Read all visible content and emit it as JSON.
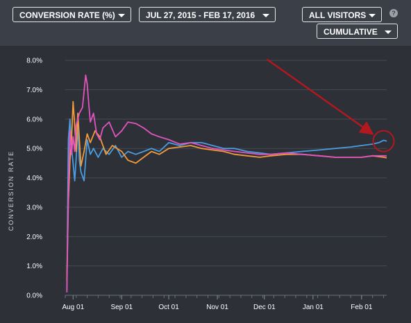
{
  "toolbar": {
    "metric_label": "CONVERSION RATE (%)",
    "date_range_label": "JUL 27, 2015 - FEB 17, 2016",
    "segment_label": "ALL VISITORS",
    "mode_label": "CUMULATIVE",
    "help_symbol": "?"
  },
  "colors": {
    "background": "#2d3037",
    "toolbar": "#3b3f47",
    "blue": "#4a9de0",
    "orange": "#f39a3a",
    "magenta": "#e354c0",
    "annotation": "#b3181f"
  },
  "chart_data": {
    "type": "line",
    "ylabel": "CONVERSION RATE",
    "xlabel": "",
    "ylim": [
      0,
      8.5
    ],
    "yticks": [
      0,
      1,
      2,
      3,
      4,
      5,
      6,
      7,
      8
    ],
    "ytick_labels": [
      "0.0%",
      "1.0%",
      "2.0%",
      "3.0%",
      "4.0%",
      "5.0%",
      "6.0%",
      "7.0%",
      "8.0%"
    ],
    "xlim": [
      "2015-07-27",
      "2016-02-17"
    ],
    "xticks": [
      "2015-08-01",
      "2015-09-01",
      "2015-10-01",
      "2015-11-01",
      "2015-12-01",
      "2016-01-01",
      "2016-02-01"
    ],
    "xtick_labels": [
      "Aug 01",
      "Sep 01",
      "Oct 01",
      "Nov 01",
      "Dec 01",
      "Jan 01",
      "Feb 01"
    ],
    "grid": true,
    "annotation": {
      "type": "arrow-and-circle",
      "target": [
        "2016-02-15",
        5.25
      ]
    },
    "series": [
      {
        "color": "#4a9de0",
        "x": [
          "2015-07-28",
          "2015-07-29",
          "2015-07-30",
          "2015-07-31",
          "2015-08-01",
          "2015-08-02",
          "2015-08-03",
          "2015-08-04",
          "2015-08-05",
          "2015-08-06",
          "2015-08-08",
          "2015-08-10",
          "2015-08-12",
          "2015-08-14",
          "2015-08-17",
          "2015-08-20",
          "2015-08-24",
          "2015-08-28",
          "2015-09-01",
          "2015-09-05",
          "2015-09-10",
          "2015-09-15",
          "2015-09-20",
          "2015-09-25",
          "2015-10-01",
          "2015-10-08",
          "2015-10-15",
          "2015-10-22",
          "2015-10-29",
          "2015-11-05",
          "2015-11-12",
          "2015-11-20",
          "2015-11-28",
          "2015-12-05",
          "2015-12-15",
          "2015-12-25",
          "2016-01-05",
          "2016-01-15",
          "2016-01-25",
          "2016-02-01",
          "2016-02-08",
          "2016-02-12",
          "2016-02-15",
          "2016-02-17"
        ],
        "y": [
          0.2,
          5.3,
          6.0,
          5.0,
          4.5,
          3.9,
          4.7,
          5.8,
          4.6,
          4.2,
          3.9,
          5.3,
          4.8,
          5.0,
          4.7,
          5.0,
          4.8,
          5.1,
          4.7,
          4.9,
          4.8,
          4.9,
          5.0,
          4.9,
          5.2,
          5.1,
          5.2,
          5.2,
          5.1,
          5.0,
          5.0,
          4.9,
          4.85,
          4.8,
          4.85,
          4.9,
          4.95,
          5.0,
          5.05,
          5.1,
          5.15,
          5.2,
          5.28,
          5.25
        ]
      },
      {
        "color": "#f39a3a",
        "x": [
          "2015-07-28",
          "2015-07-29",
          "2015-07-30",
          "2015-07-31",
          "2015-08-01",
          "2015-08-02",
          "2015-08-03",
          "2015-08-04",
          "2015-08-06",
          "2015-08-08",
          "2015-08-10",
          "2015-08-12",
          "2015-08-15",
          "2015-08-18",
          "2015-08-22",
          "2015-08-26",
          "2015-09-01",
          "2015-09-05",
          "2015-09-10",
          "2015-09-15",
          "2015-09-20",
          "2015-09-25",
          "2015-10-01",
          "2015-10-08",
          "2015-10-15",
          "2015-10-22",
          "2015-10-29",
          "2015-11-05",
          "2015-11-12",
          "2015-11-20",
          "2015-11-28",
          "2015-12-05",
          "2015-12-15",
          "2015-12-25",
          "2016-01-05",
          "2016-01-15",
          "2016-01-25",
          "2016-02-01",
          "2016-02-08",
          "2016-02-15",
          "2016-02-17"
        ],
        "y": [
          0.5,
          3.2,
          4.6,
          5.3,
          6.6,
          5.8,
          4.9,
          6.2,
          4.4,
          4.9,
          5.5,
          5.2,
          5.6,
          5.4,
          4.8,
          5.1,
          4.9,
          4.6,
          4.5,
          4.7,
          4.9,
          4.8,
          5.0,
          5.05,
          5.1,
          5.0,
          4.95,
          4.9,
          4.8,
          4.75,
          4.7,
          4.75,
          4.8,
          4.8,
          4.75,
          4.7,
          4.7,
          4.7,
          4.75,
          4.7,
          4.68
        ]
      },
      {
        "color": "#e354c0",
        "x": [
          "2015-07-28",
          "2015-07-29",
          "2015-07-30",
          "2015-07-31",
          "2015-08-01",
          "2015-08-02",
          "2015-08-03",
          "2015-08-05",
          "2015-08-07",
          "2015-08-09",
          "2015-08-10",
          "2015-08-11",
          "2015-08-12",
          "2015-08-14",
          "2015-08-16",
          "2015-08-18",
          "2015-08-20",
          "2015-08-24",
          "2015-08-28",
          "2015-09-01",
          "2015-09-05",
          "2015-09-10",
          "2015-09-15",
          "2015-09-20",
          "2015-09-25",
          "2015-10-01",
          "2015-10-08",
          "2015-10-15",
          "2015-10-22",
          "2015-10-29",
          "2015-11-05",
          "2015-11-12",
          "2015-11-20",
          "2015-11-28",
          "2015-12-05",
          "2015-12-15",
          "2015-12-25",
          "2016-01-05",
          "2016-01-15",
          "2016-01-25",
          "2016-02-01",
          "2016-02-08",
          "2016-02-15",
          "2016-02-17"
        ],
        "y": [
          0.1,
          3.6,
          5.6,
          4.8,
          5.4,
          4.9,
          5.8,
          6.2,
          6.4,
          7.5,
          7.2,
          6.5,
          5.9,
          6.2,
          5.5,
          5.3,
          5.7,
          5.9,
          5.4,
          5.6,
          5.9,
          5.85,
          5.7,
          5.5,
          5.4,
          5.3,
          5.15,
          5.2,
          5.1,
          5.0,
          4.95,
          4.9,
          4.85,
          4.8,
          4.8,
          4.85,
          4.8,
          4.75,
          4.7,
          4.7,
          4.7,
          4.75,
          4.75,
          4.75
        ]
      }
    ]
  }
}
